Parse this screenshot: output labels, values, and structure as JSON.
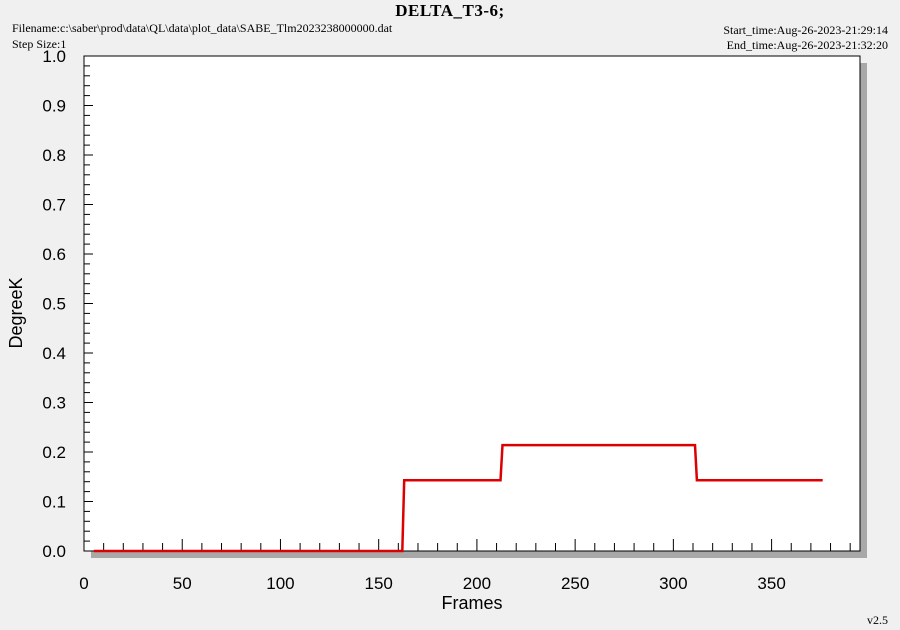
{
  "header": {
    "title": "DELTA_T3-6;",
    "filename": "Filename:c:\\saber\\prod\\data\\QL\\data\\plot_data\\SABE_Tlm2023238000000.dat",
    "step_size": "Step Size:1",
    "start_time": "Start_time:Aug-26-2023-21:29:14",
    "end_time": "End_time:Aug-26-2023-21:32:20"
  },
  "footer": {
    "version": "v2.5"
  },
  "colors": {
    "series": "#dd0000",
    "plot_bg": "#ffffff",
    "shadow": "#a8a8a8",
    "page_bg": "#f0f0f0"
  },
  "chart_data": {
    "type": "line",
    "title": "DELTA_T3-6;",
    "xlabel": "Frames",
    "ylabel": "DegreeK",
    "xlim": [
      0,
      395
    ],
    "ylim": [
      0.0,
      1.0
    ],
    "x_ticks": [
      "0",
      "50",
      "100",
      "150",
      "200",
      "250",
      "300",
      "350"
    ],
    "y_ticks": [
      "0.0",
      "0.1",
      "0.2",
      "0.3",
      "0.4",
      "0.5",
      "0.6",
      "0.7",
      "0.8",
      "0.9",
      "1.0"
    ],
    "grid": false,
    "series": [
      {
        "color": "#dd0000",
        "x": [
          5,
          162,
          163,
          212,
          213,
          311,
          312,
          376
        ],
        "y": [
          0.0,
          0.0,
          0.143,
          0.143,
          0.214,
          0.214,
          0.143,
          0.143
        ]
      }
    ]
  }
}
